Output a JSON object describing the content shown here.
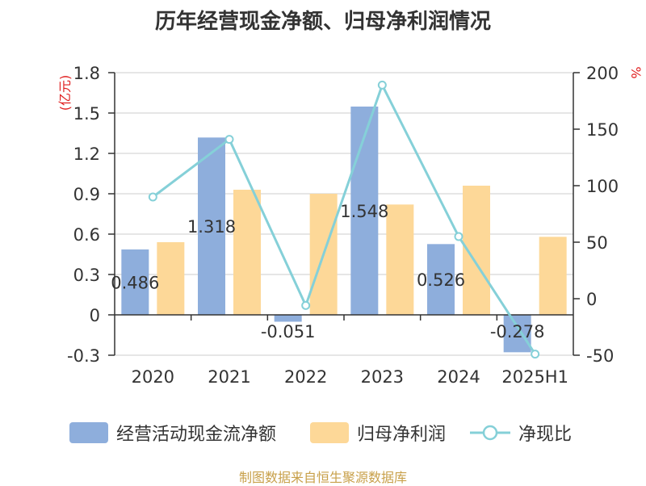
{
  "title": "历年经营现金净额、归母净利润情况",
  "source": "制图数据来自恒生聚源数据库",
  "colors": {
    "cash_bar": "#8eaedc",
    "profit_bar": "#fdd898",
    "ratio_line": "#85d0d8",
    "axis": "#333333",
    "grid": "#cccccc",
    "unit_red": "#e02020"
  },
  "chart_data": {
    "type": "bar",
    "categories": [
      "2020",
      "2021",
      "2022",
      "2023",
      "2024",
      "2025H1"
    ],
    "left_unit": "(亿元)",
    "right_unit": "%",
    "left_axis": {
      "ticks": [
        "1.8",
        "1.5",
        "1.2",
        "0.9",
        "0.6",
        "0.3",
        "0",
        "-0.3"
      ],
      "ylim": [
        -0.3,
        1.8
      ]
    },
    "right_axis": {
      "ticks": [
        "200",
        "150",
        "100",
        "50",
        "0",
        "-50"
      ],
      "ylim": [
        -50,
        200
      ]
    },
    "series": [
      {
        "name": "经营活动现金流净额",
        "type": "bar",
        "axis": "left",
        "values": [
          0.486,
          1.318,
          -0.051,
          1.548,
          0.526,
          -0.278
        ],
        "labels": [
          "0.486",
          "1.318",
          "-0.051",
          "1.548",
          "0.526",
          "-0.278"
        ]
      },
      {
        "name": "归母净利润",
        "type": "bar",
        "axis": "left",
        "values": [
          0.54,
          0.93,
          0.9,
          0.82,
          0.96,
          0.58
        ]
      },
      {
        "name": "净现比",
        "type": "line",
        "axis": "right",
        "values": [
          90,
          141,
          -6,
          189,
          55,
          -49
        ]
      }
    ],
    "grid": true,
    "legend_position": "bottom"
  }
}
